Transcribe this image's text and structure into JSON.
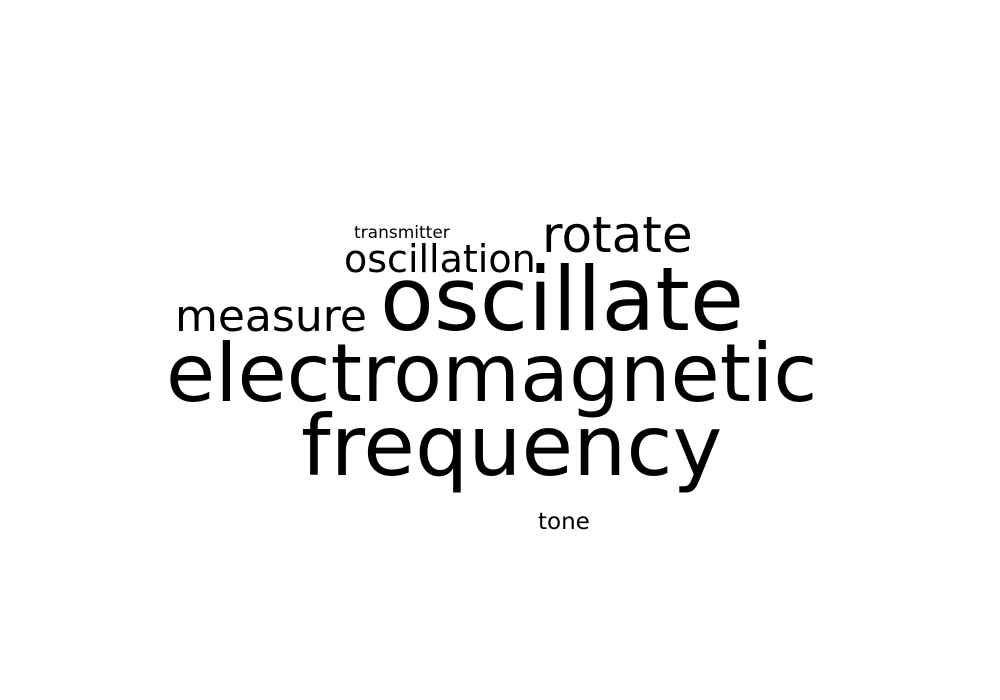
{
  "word_cloud": {
    "text_color": "#000000",
    "background_color": "#ffffff",
    "words": [
      {
        "text": "transmitter",
        "weight": 1
      },
      {
        "text": "rotate",
        "weight": 3
      },
      {
        "text": "oscillation",
        "weight": 2
      },
      {
        "text": "measure",
        "weight": 2
      },
      {
        "text": "oscillate",
        "weight": 5
      },
      {
        "text": "electromagnetic",
        "weight": 5
      },
      {
        "text": "frequency",
        "weight": 5
      },
      {
        "text": "tone",
        "weight": 1
      }
    ]
  }
}
